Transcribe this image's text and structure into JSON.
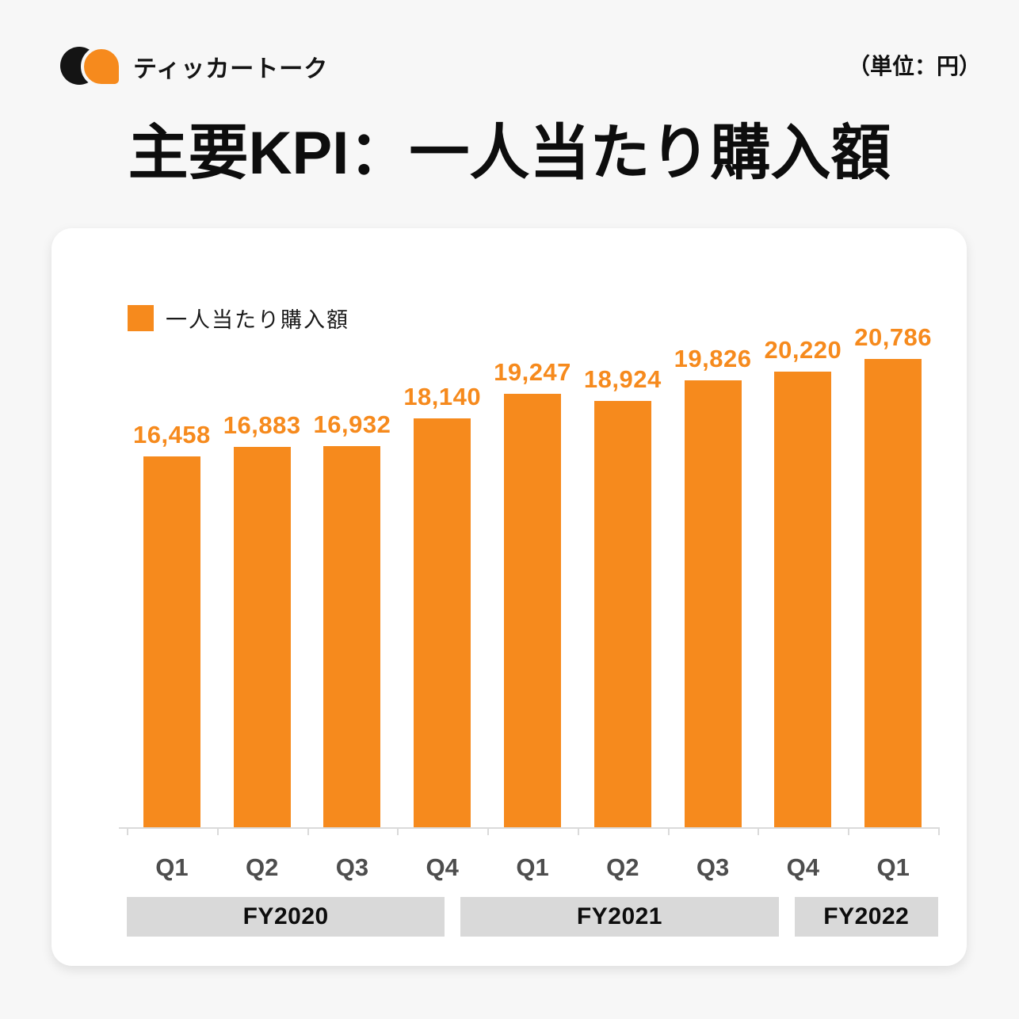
{
  "header": {
    "brand": "ティッカートーク",
    "unit_label": "（単位：円）"
  },
  "title": "主要KPI：一人当たり購入額",
  "legend_label": "一人当たり購入額",
  "colors": {
    "accent": "#F68A1D",
    "ink": "#111111",
    "logo_black": "#141414",
    "band_gray": "#D9D9D9",
    "axis_gray": "#DADADA",
    "axis_label_gray": "#4D4D4D",
    "page_bg": "#F7F7F7",
    "card_bg": "#FFFFFF"
  },
  "chart_data": {
    "type": "bar",
    "title": "主要KPI：一人当たり購入額",
    "unit": "円",
    "series_name": "一人当たり購入額",
    "categories": [
      "Q1",
      "Q2",
      "Q3",
      "Q4",
      "Q1",
      "Q2",
      "Q3",
      "Q4",
      "Q1"
    ],
    "values": [
      16458,
      16883,
      16932,
      18140,
      19247,
      18924,
      19826,
      20220,
      20786
    ],
    "value_labels": [
      "16,458",
      "16,883",
      "16,932",
      "18,140",
      "19,247",
      "18,924",
      "19,826",
      "20,220",
      "20,786"
    ],
    "groups": [
      {
        "label": "FY2020",
        "span": 4
      },
      {
        "label": "FY2021",
        "span": 4
      },
      {
        "label": "FY2022",
        "span": 1
      }
    ],
    "ylim": [
      0,
      21000
    ],
    "bar_color": "#F68A1D",
    "legend_position": "top-left",
    "grid": false,
    "data_labels": true
  }
}
